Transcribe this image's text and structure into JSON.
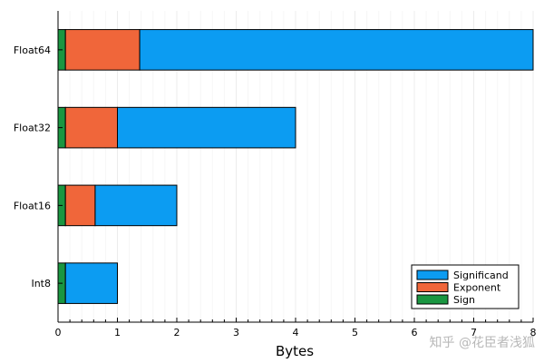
{
  "chart_data": {
    "type": "bar",
    "orientation": "horizontal",
    "stacked": true,
    "title": "",
    "xlabel": "Bytes",
    "ylabel": "",
    "xlim": [
      0,
      8
    ],
    "xticks": [
      "0",
      "1",
      "2",
      "3",
      "4",
      "5",
      "6",
      "7",
      "8"
    ],
    "categories": [
      "Float64",
      "Float32",
      "Float16",
      "Int8"
    ],
    "series": [
      {
        "name": "Sign",
        "color": "#1a9641",
        "values": [
          0.125,
          0.125,
          0.125,
          0.125
        ]
      },
      {
        "name": "Exponent",
        "color": "#f0663a",
        "values": [
          1.25,
          0.875,
          0.5,
          0
        ]
      },
      {
        "name": "Significand",
        "color": "#0c9cf2",
        "values": [
          6.625,
          3.0,
          1.375,
          0.875
        ]
      }
    ],
    "legend_order": [
      "Significand",
      "Exponent",
      "Sign"
    ],
    "legend_position": "bottom-right",
    "grid": true
  },
  "watermark": "知乎 @花臣者浅狐"
}
